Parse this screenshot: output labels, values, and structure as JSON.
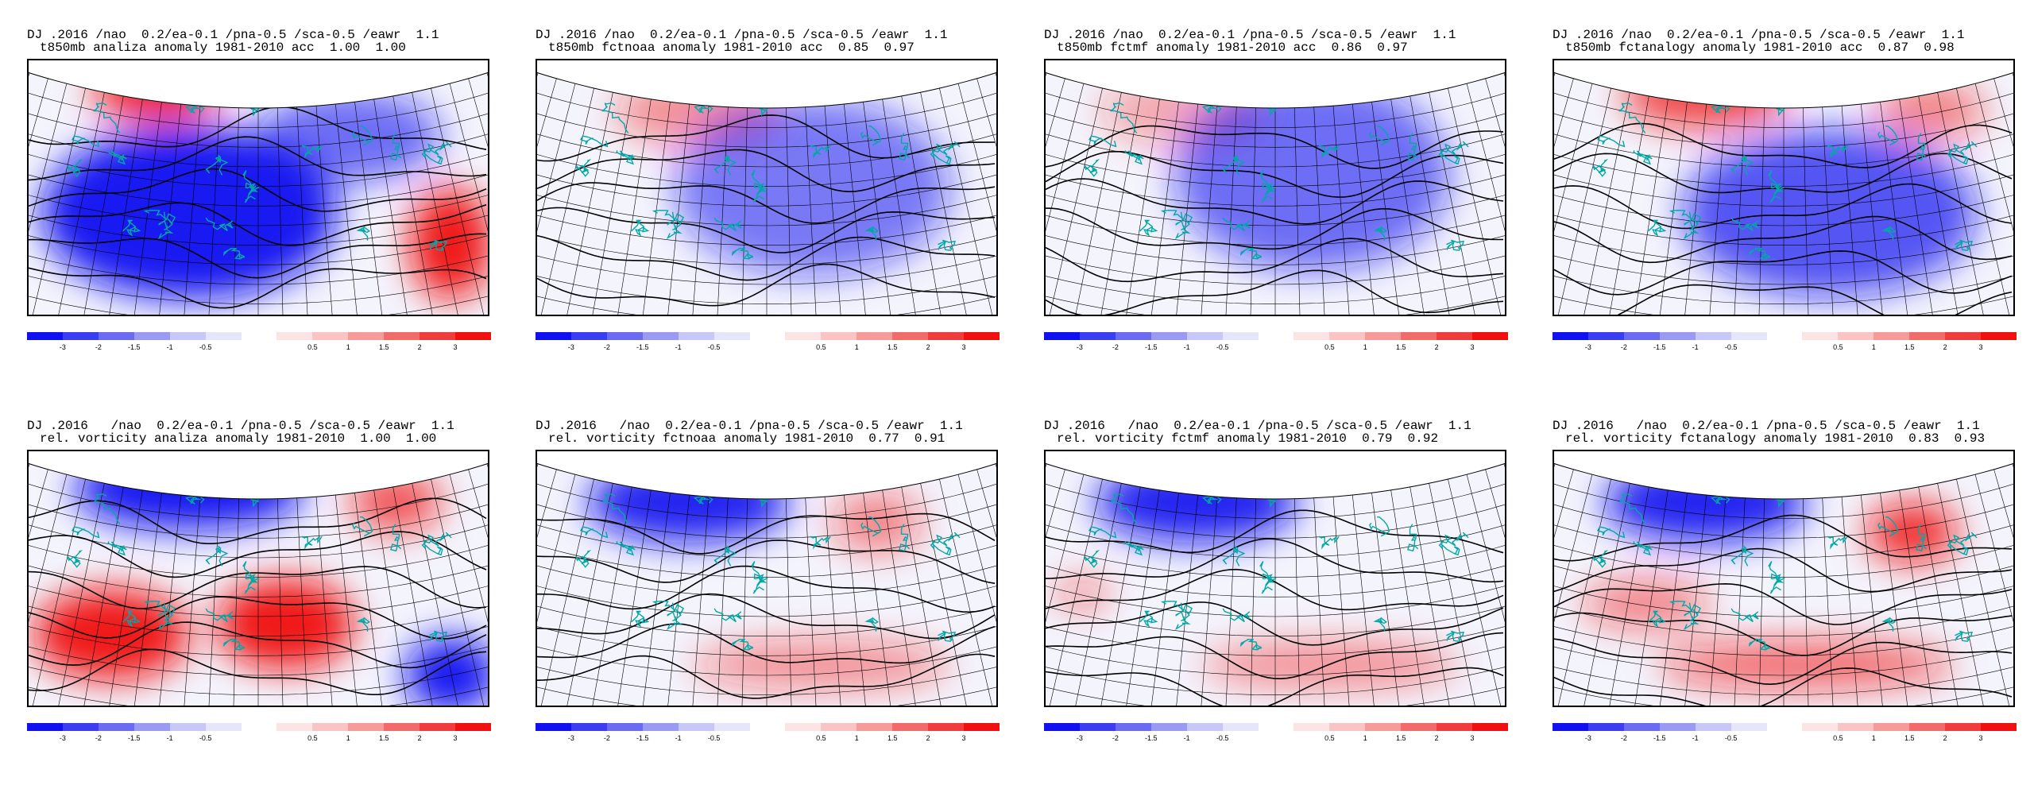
{
  "panels": [
    {
      "id": "t850-analiza",
      "line1": "DJ .2016 /nao  0.2/ea-0.1 /pna-0.5 /sca-0.5 /eawr  1.1",
      "line2": "t850mb analiza anomaly 1981-2010 acc  1.00  1.00",
      "field": "temperature-anomaly"
    },
    {
      "id": "t850-fctnoaa",
      "line1": "DJ .2016 /nao  0.2/ea-0.1 /pna-0.5 /sca-0.5 /eawr  1.1",
      "line2": "t850mb fctnoaa anomaly 1981-2010 acc  0.85  0.97",
      "field": "temperature-anomaly"
    },
    {
      "id": "t850-fctmf",
      "line1": "DJ .2016 /nao  0.2/ea-0.1 /pna-0.5 /sca-0.5 /eawr  1.1",
      "line2": "t850mb fctmf anomaly 1981-2010 acc  0.86  0.97",
      "field": "temperature-anomaly"
    },
    {
      "id": "t850-fctanalogy",
      "line1": "DJ .2016 /nao  0.2/ea-0.1 /pna-0.5 /sca-0.5 /eawr  1.1",
      "line2": "t850mb fctanalogy anomaly 1981-2010 acc  0.87  0.98",
      "field": "temperature-anomaly"
    },
    {
      "id": "vort-analiza",
      "line1": "DJ .2016   /nao  0.2/ea-0.1 /pna-0.5 /sca-0.5 /eawr  1.1",
      "line2": "rel. vorticity analiza anomaly 1981-2010  1.00  1.00",
      "field": "vorticity-anomaly"
    },
    {
      "id": "vort-fctnoaa",
      "line1": "DJ .2016   /nao  0.2/ea-0.1 /pna-0.5 /sca-0.5 /eawr  1.1",
      "line2": "rel. vorticity fctnoaa anomaly 1981-2010  0.77  0.91",
      "field": "vorticity-anomaly"
    },
    {
      "id": "vort-fctmf",
      "line1": "DJ .2016   /nao  0.2/ea-0.1 /pna-0.5 /sca-0.5 /eawr  1.1",
      "line2": "rel. vorticity fctmf anomaly 1981-2010  0.79  0.92",
      "field": "vorticity-anomaly"
    },
    {
      "id": "vort-fctanalogy",
      "line1": "DJ .2016   /nao  0.2/ea-0.1 /pna-0.5 /sca-0.5 /eawr  1.1",
      "line2": "rel. vorticity fctanalogy anomaly 1981-2010  0.83  0.93",
      "field": "vorticity-anomaly"
    }
  ],
  "colorbar": {
    "ticks": [
      "-3",
      "-2",
      "-1.5",
      "-1",
      "-0.5",
      "0.5",
      "1",
      "1.5",
      "2",
      "3"
    ],
    "colors": [
      "#1010f0",
      "#3c3cf0",
      "#6a6af2",
      "#9a9af5",
      "#c8c8f8",
      "#e6e6fb",
      "#ffffff",
      "#fde4e4",
      "#fbc4c4",
      "#f69a9a",
      "#f26a6a",
      "#f03c3c",
      "#f01010"
    ]
  },
  "colors": {
    "coastline": "#00a8a8",
    "contour": "#000000"
  }
}
